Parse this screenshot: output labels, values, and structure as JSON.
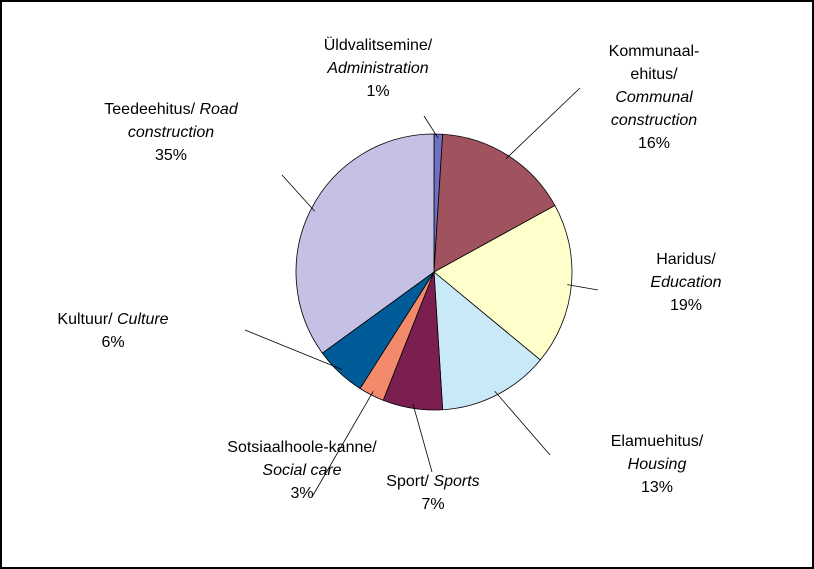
{
  "chart_data": {
    "type": "pie",
    "categories": [
      "Üldvalitsemine/",
      "Kommunaal-ehitus/",
      "Haridus/",
      "Elamuehitus/",
      "Sport/",
      "Sotsiaalhoole-kanne/",
      "Kultuur/",
      "Teedeehitus/"
    ],
    "categories_en": [
      "Administration",
      "Communal construction",
      "Education",
      "Housing",
      "Sports",
      "Social care",
      "Culture",
      "Road construction"
    ],
    "values": [
      1,
      16,
      19,
      13,
      7,
      3,
      6,
      35
    ],
    "value_labels": [
      "1%",
      "16%",
      "19%",
      "13%",
      "7%",
      "3%",
      "6%",
      "35%"
    ],
    "colors": [
      "#6f6fc4",
      "#a1525f",
      "#ffffcc",
      "#c9e9f8",
      "#7b1f50",
      "#f48a6c",
      "#005c99",
      "#c5c1e4"
    ]
  }
}
